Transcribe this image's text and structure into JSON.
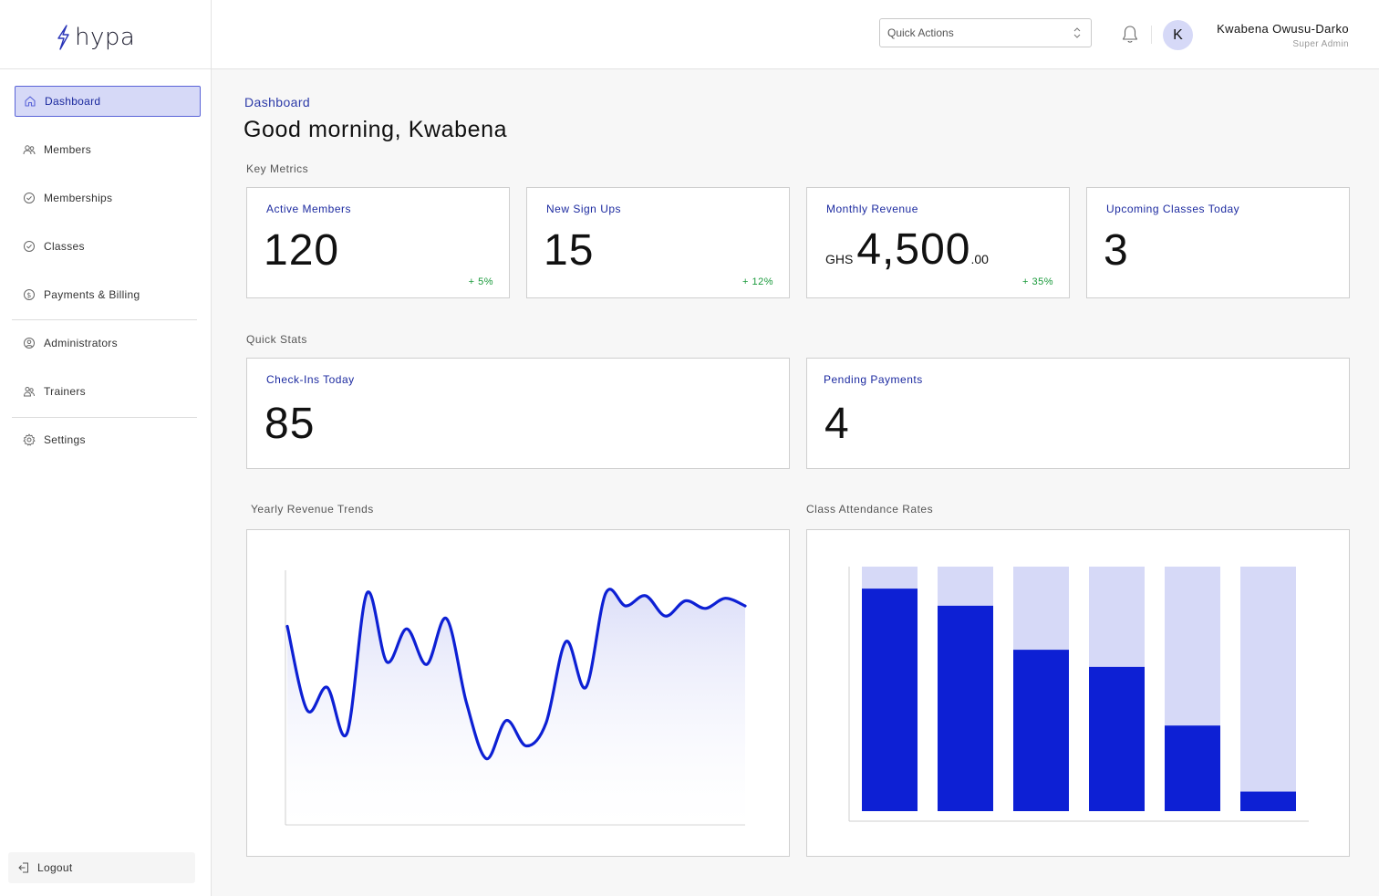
{
  "app": {
    "logo_text": "hypa"
  },
  "sidebar": {
    "items": [
      {
        "label": "Dashboard",
        "icon": "home-icon",
        "active": true
      },
      {
        "label": "Members",
        "icon": "users-icon"
      },
      {
        "label": "Memberships",
        "icon": "check-circle-icon"
      },
      {
        "label": "Classes",
        "icon": "check-circle-icon"
      },
      {
        "label": "Payments & Billing",
        "icon": "dollar-circle-icon"
      },
      {
        "label": "Administrators",
        "icon": "user-circle-icon"
      },
      {
        "label": "Trainers",
        "icon": "users-icon"
      },
      {
        "label": "Settings",
        "icon": "gear-icon"
      }
    ],
    "logout_label": "Logout"
  },
  "header": {
    "quick_actions_label": "Quick Actions",
    "user": {
      "initial": "K",
      "name": "Kwabena Owusu-Darko",
      "role": "Super Admin"
    }
  },
  "main": {
    "breadcrumb": "Dashboard",
    "greeting": "Good morning, Kwabena",
    "key_metrics_label": "Key Metrics",
    "metrics": [
      {
        "title": "Active Members",
        "value": "120",
        "change": "+ 5%"
      },
      {
        "title": "New Sign Ups",
        "value": "15",
        "change": "+ 12%"
      },
      {
        "title": "Monthly Revenue",
        "currency": "GHS",
        "value": "4,500",
        "decimals": ".00",
        "change": "+ 35%"
      },
      {
        "title": "Upcoming Classes Today",
        "value": "3",
        "change": ""
      }
    ],
    "quick_stats_label": "Quick Stats",
    "quick_stats": [
      {
        "title": "Check-Ins Today",
        "value": "85"
      },
      {
        "title": "Pending Payments",
        "value": "4"
      }
    ],
    "revenue_chart_label": "Yearly Revenue Trends",
    "attendance_chart_label": "Class Attendance Rates"
  },
  "colors": {
    "accent": "#0d20d4",
    "accent_light": "#d6d9f7",
    "positive": "#1b9a3c"
  },
  "chart_data": [
    {
      "type": "area",
      "title": "Yearly Revenue Trends",
      "x": [
        0,
        1,
        2,
        3,
        4,
        5,
        6,
        7,
        8,
        9,
        10,
        11,
        12,
        13,
        14,
        15,
        16,
        17,
        18,
        19,
        20,
        21,
        22,
        23
      ],
      "values": [
        78,
        45,
        54,
        36,
        91,
        64,
        77,
        63,
        81,
        48,
        26,
        41,
        31,
        40,
        72,
        54,
        91,
        86,
        90,
        82,
        88,
        85,
        89,
        86
      ],
      "ylim": [
        0,
        100
      ],
      "grid": false
    },
    {
      "type": "bar",
      "title": "Class Attendance Rates",
      "categories": [
        "1",
        "2",
        "3",
        "4",
        "5",
        "6"
      ],
      "values": [
        91,
        84,
        66,
        59,
        35,
        8
      ],
      "ylim": [
        0,
        100
      ],
      "stacked_remainder": true
    }
  ]
}
